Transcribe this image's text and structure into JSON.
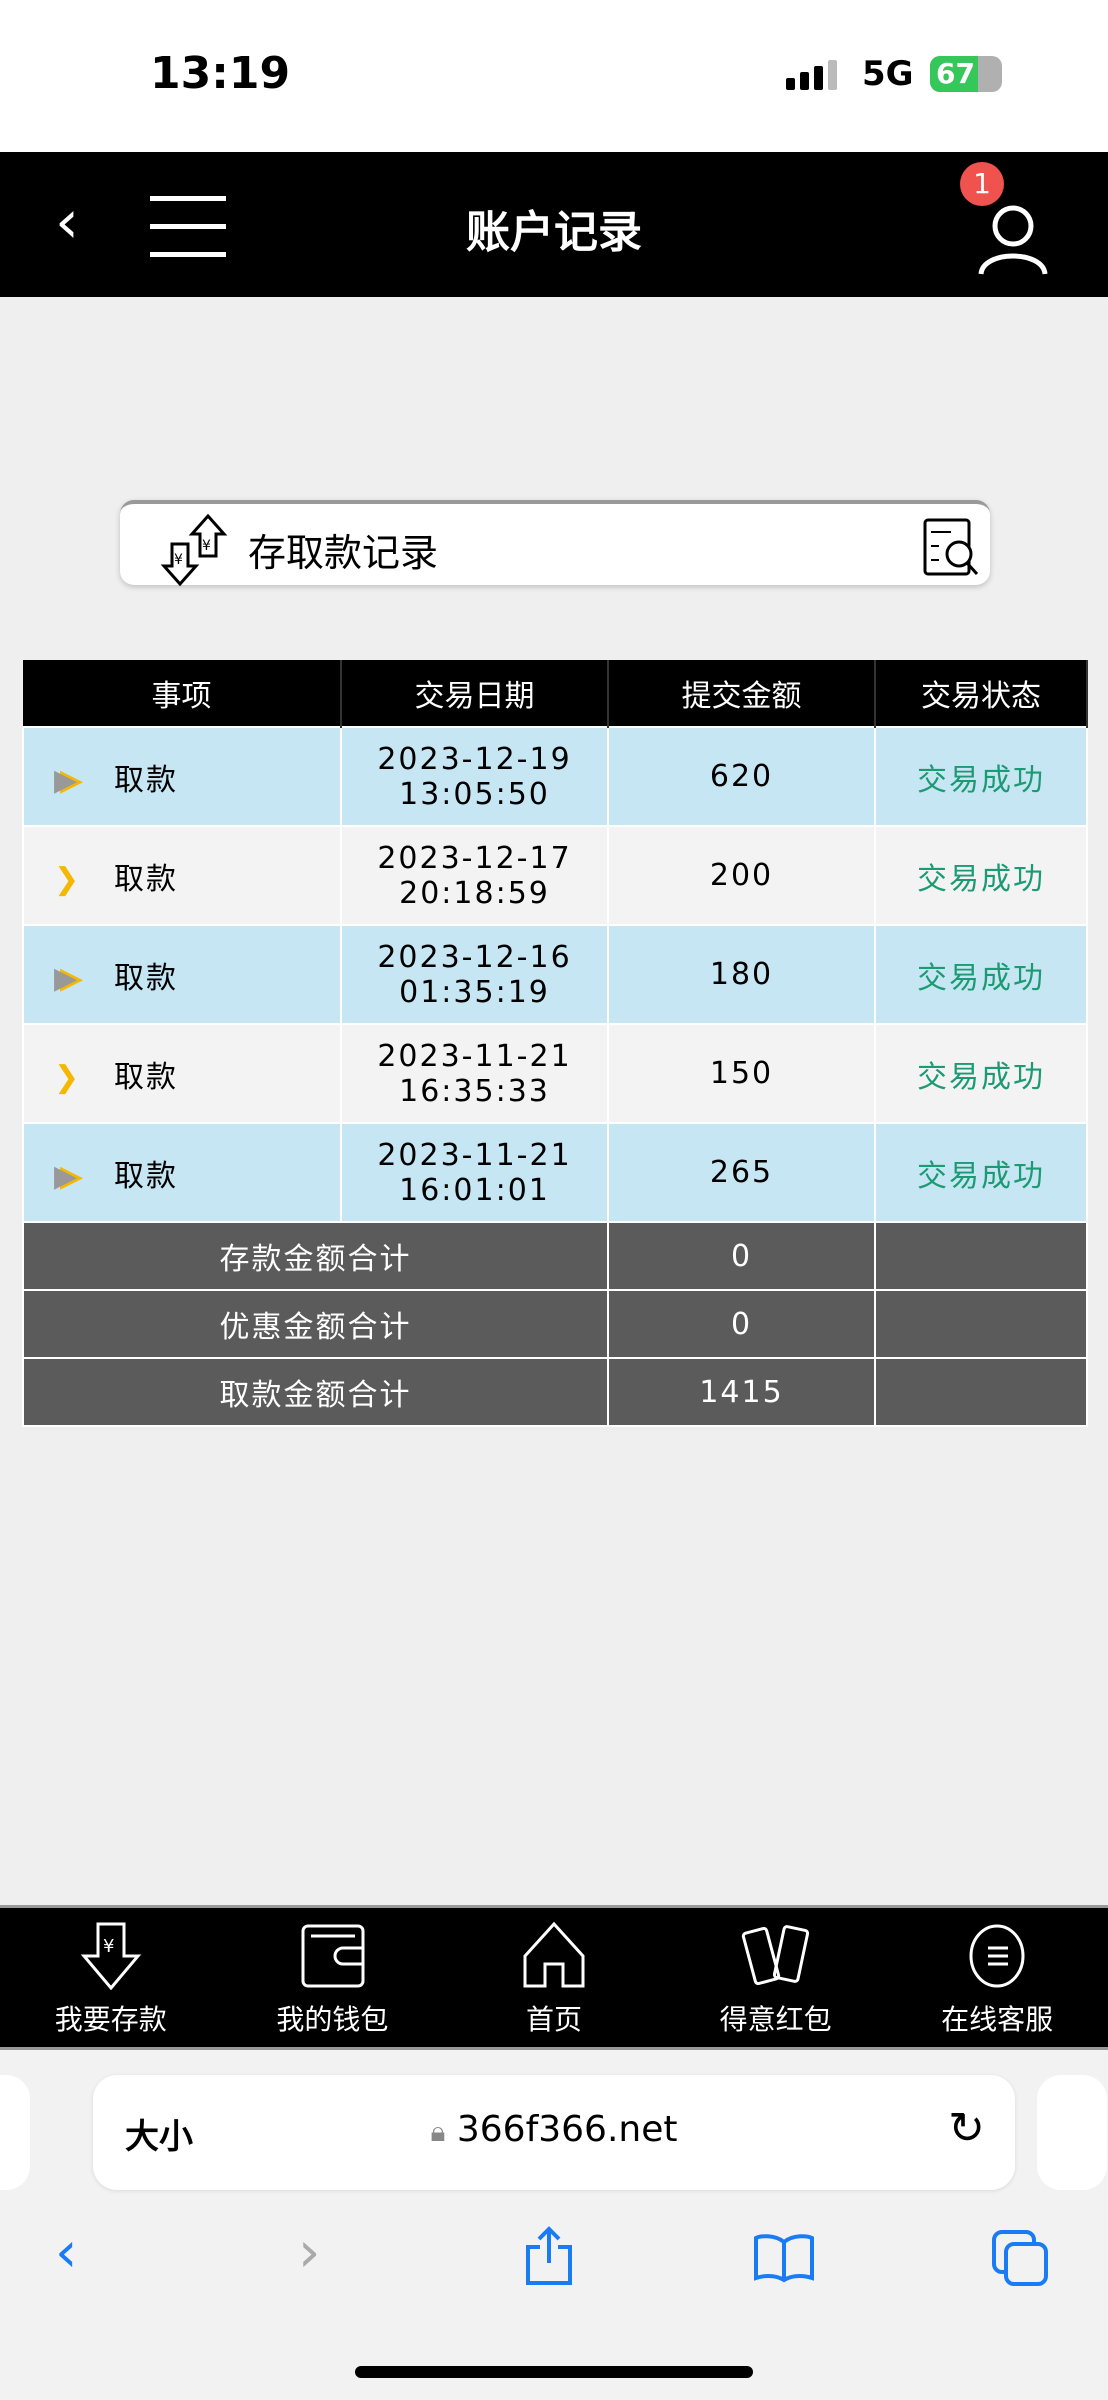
{
  "status": {
    "time": "13:19",
    "network": "5G",
    "battery": "67",
    "battery_level": 0.67
  },
  "header": {
    "title": "账户记录",
    "notification_count": "1"
  },
  "record_box": {
    "label": "存取款记录"
  },
  "table": {
    "columns": [
      "事项",
      "交易日期",
      "提交金额",
      "交易状态"
    ],
    "rows": [
      {
        "item": "取款",
        "date": "2023-12-19",
        "time": "13:05:50",
        "amount": "620",
        "status": "交易成功"
      },
      {
        "item": "取款",
        "date": "2023-12-17",
        "time": "20:18:59",
        "amount": "200",
        "status": "交易成功"
      },
      {
        "item": "取款",
        "date": "2023-12-16",
        "time": "01:35:19",
        "amount": "180",
        "status": "交易成功"
      },
      {
        "item": "取款",
        "date": "2023-11-21",
        "time": "16:35:33",
        "amount": "150",
        "status": "交易成功"
      },
      {
        "item": "取款",
        "date": "2023-11-21",
        "time": "16:01:01",
        "amount": "265",
        "status": "交易成功"
      }
    ],
    "summary": [
      {
        "label": "存款金额合计",
        "value": "0"
      },
      {
        "label": "优惠金额合计",
        "value": "0"
      },
      {
        "label": "取款金额合计",
        "value": "1415"
      }
    ]
  },
  "bottom_nav": [
    "我要存款",
    "我的钱包",
    "首页",
    "得意红包",
    "在线客服"
  ],
  "browser": {
    "text_size": "大小",
    "url": "366f366.net"
  },
  "colors": {
    "success": "#1c9a73",
    "row_blue": "#c7e6f3",
    "row_gray": "#f3f3f3",
    "summary": "#5b5b5b",
    "badge": "#f0524d"
  }
}
